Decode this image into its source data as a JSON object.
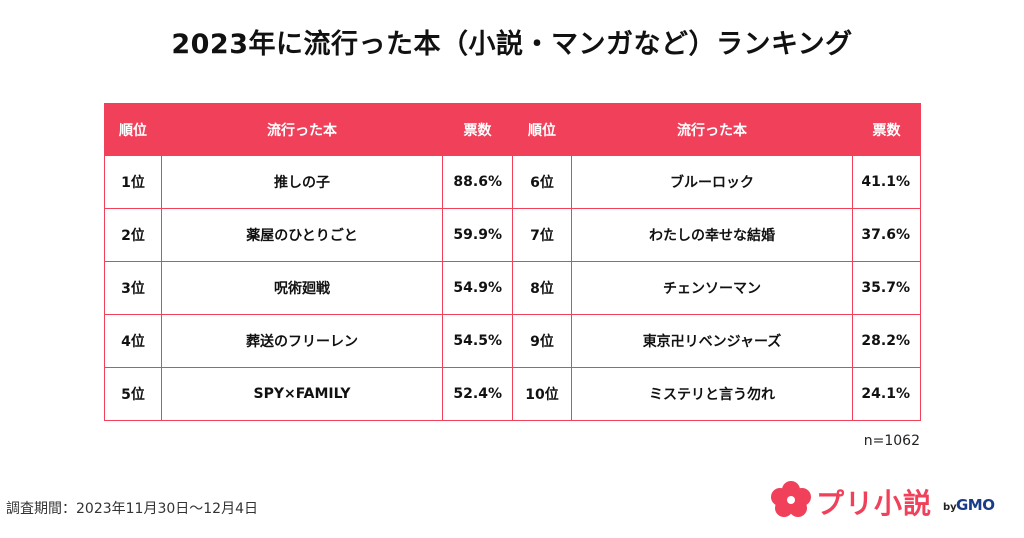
{
  "title": "2023年に流行った本（小説・マンガなど）ランキング",
  "table": {
    "headers": [
      "順位",
      "流行った本",
      "票数",
      "順位",
      "流行った本",
      "票数"
    ],
    "rows": [
      {
        "rank_l": "1位",
        "book_l": "推しの子",
        "votes_l": "88.6%",
        "rank_r": "6位",
        "book_r": "ブルーロック",
        "votes_r": "41.1%"
      },
      {
        "rank_l": "2位",
        "book_l": "薬屋のひとりごと",
        "votes_l": "59.9%",
        "rank_r": "7位",
        "book_r": "わたしの幸せな結婚",
        "votes_r": "37.6%"
      },
      {
        "rank_l": "3位",
        "book_l": "呪術廻戦",
        "votes_l": "54.9%",
        "rank_r": "8位",
        "book_r": "チェンソーマン",
        "votes_r": "35.7%"
      },
      {
        "rank_l": "4位",
        "book_l": "葬送のフリーレン",
        "votes_l": "54.5%",
        "rank_r": "9位",
        "book_r": "東京卍リベンジャーズ",
        "votes_r": "28.2%"
      },
      {
        "rank_l": "5位",
        "book_l": "SPY×FAMILY",
        "votes_l": "52.4%",
        "rank_r": "10位",
        "book_r": "ミステリと言う勿れ",
        "votes_r": "24.1%"
      }
    ]
  },
  "sample_size": "n=1062",
  "survey_period": "調査期間：2023年11月30日～12月4日",
  "logo": {
    "text": "プリ小説",
    "by": "by",
    "brand": "GMO",
    "icon": "cloud-flower-icon"
  },
  "colors": {
    "accent": "#f0405a",
    "brand_blue": "#1a3b8a"
  }
}
